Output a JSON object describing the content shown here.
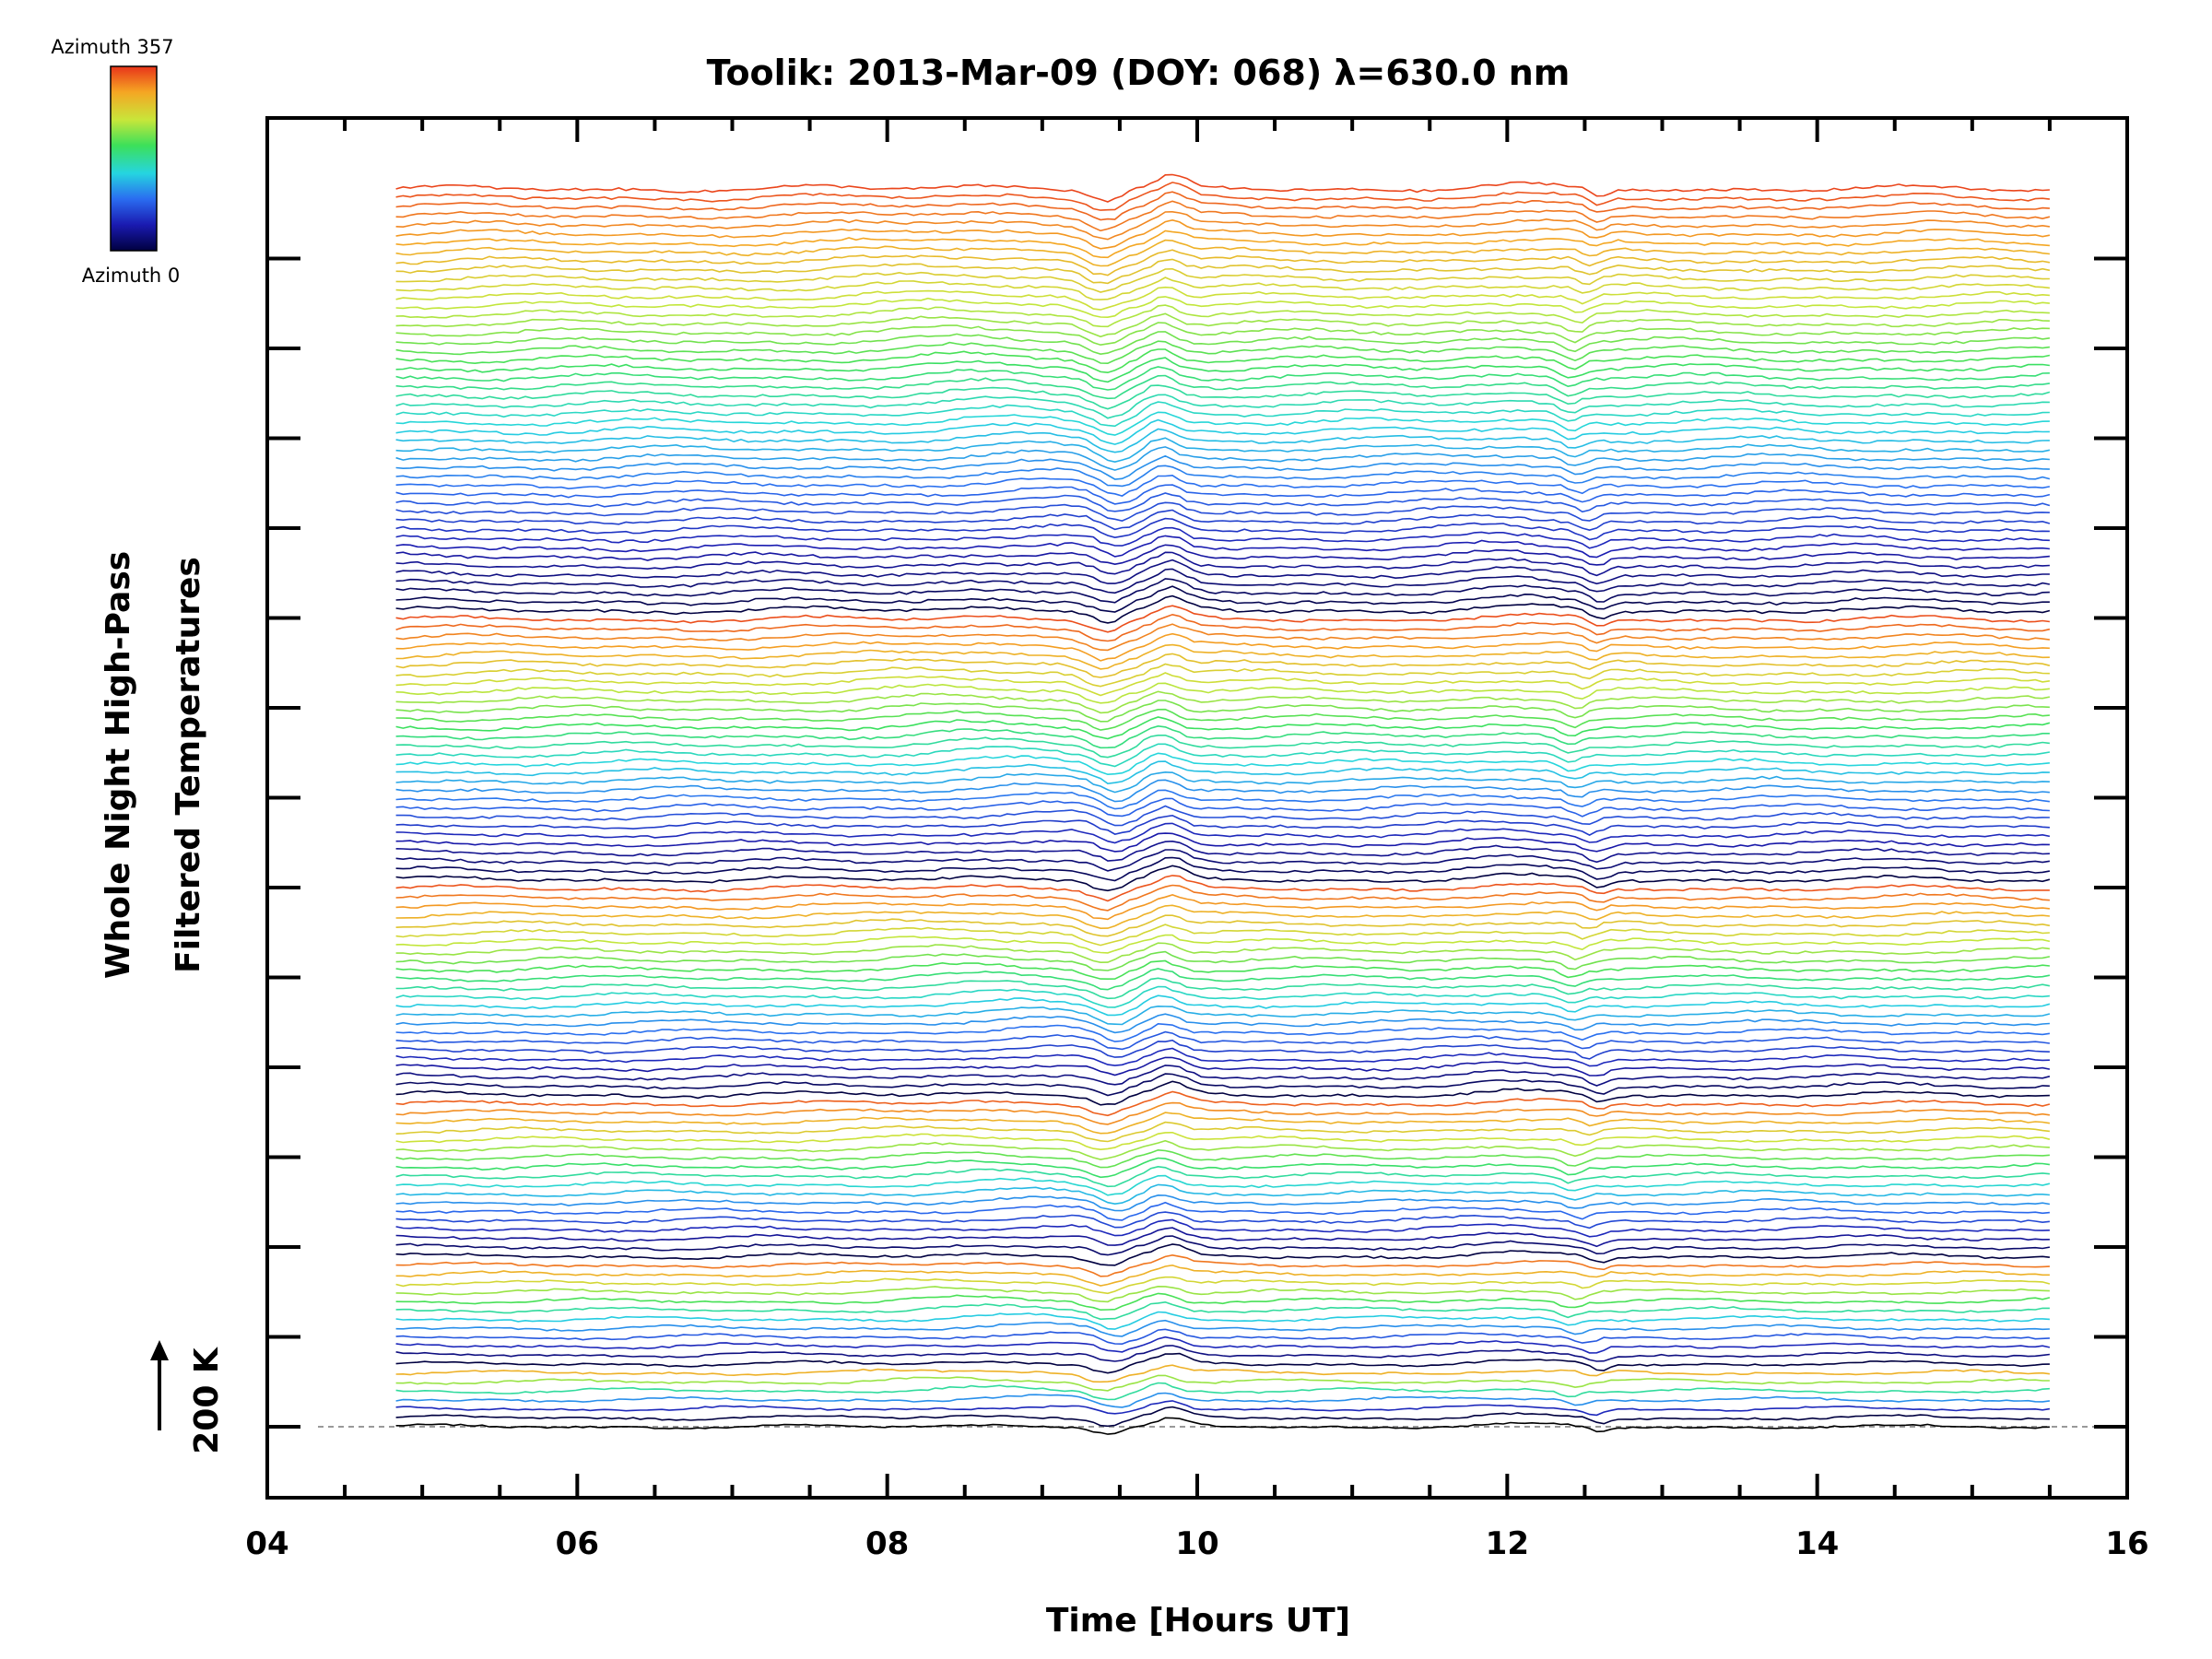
{
  "chart_data": {
    "type": "line",
    "title": "Toolik: 2013-Mar-09 (DOY: 068) λ=630.0 nm",
    "xlabel": "Time [Hours UT]",
    "ylabel_line1": "Whole Night High-Pass",
    "ylabel_line2": "Filtered Temperatures",
    "xlim": [
      4,
      16
    ],
    "xtick_labels": [
      "04",
      "06",
      "08",
      "10",
      "12",
      "14",
      "16"
    ],
    "time_range": [
      4.83,
      15.5
    ],
    "scale_label": "200 K",
    "colorbar": {
      "top_label": "Azimuth 357",
      "bottom_label": "Azimuth 0",
      "colors": [
        "#000040",
        "#1a1ab0",
        "#2a6cf0",
        "#25d5e0",
        "#3ce05a",
        "#c8e63a",
        "#f5a623",
        "#e8341a"
      ]
    },
    "series_count": 139,
    "rings": [
      {
        "ring": 1,
        "traces": 1
      },
      {
        "ring": 2,
        "traces": 6
      },
      {
        "ring": 3,
        "traces": 12
      },
      {
        "ring": 4,
        "traces": 18
      },
      {
        "ring": 5,
        "traces": 24
      },
      {
        "ring": 6,
        "traces": 30
      },
      {
        "ring": 7,
        "traces": 48
      }
    ],
    "features": [
      {
        "time": 9.45,
        "type": "dip"
      },
      {
        "time": 9.8,
        "type": "peak"
      },
      {
        "time": 12.5,
        "type": "dip"
      }
    ],
    "grid": false
  }
}
